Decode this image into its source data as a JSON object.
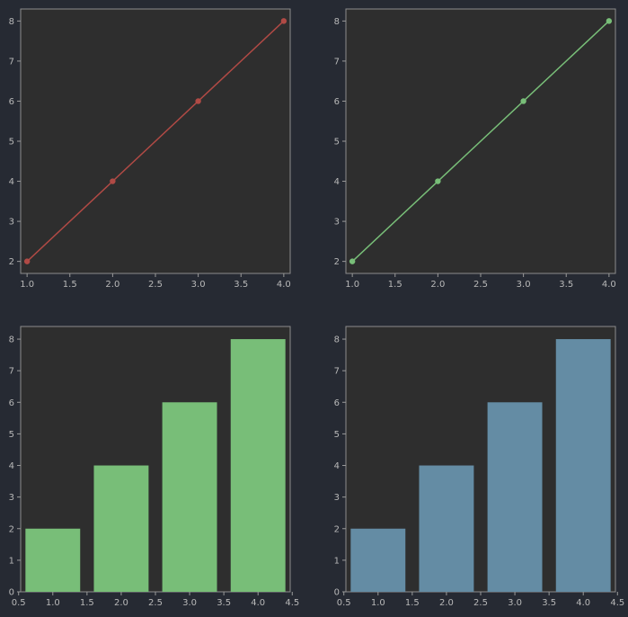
{
  "chart_data": [
    {
      "type": "line",
      "x": [
        1.0,
        2.0,
        3.0,
        4.0
      ],
      "y": [
        2,
        4,
        6,
        8
      ],
      "color": "#b04a45",
      "markers": true,
      "xlim": [
        0.925,
        4.075
      ],
      "ylim": [
        1.7,
        8.3
      ],
      "xticks": [
        1.0,
        1.5,
        2.0,
        2.5,
        3.0,
        3.5,
        4.0
      ],
      "xtick_labels": [
        "1.0",
        "1.5",
        "2.0",
        "2.5",
        "3.0",
        "3.5",
        "4.0"
      ],
      "yticks": [
        2,
        3,
        4,
        5,
        6,
        7,
        8
      ],
      "ytick_labels": [
        "2",
        "3",
        "4",
        "5",
        "6",
        "7",
        "8"
      ],
      "title": "",
      "xlabel": "",
      "ylabel": "",
      "grid": false
    },
    {
      "type": "line",
      "x": [
        1.0,
        2.0,
        3.0,
        4.0
      ],
      "y": [
        2,
        4,
        6,
        8
      ],
      "color": "#78be78",
      "markers": true,
      "xlim": [
        0.925,
        4.075
      ],
      "ylim": [
        1.7,
        8.3
      ],
      "xticks": [
        1.0,
        1.5,
        2.0,
        2.5,
        3.0,
        3.5,
        4.0
      ],
      "xtick_labels": [
        "1.0",
        "1.5",
        "2.0",
        "2.5",
        "3.0",
        "3.5",
        "4.0"
      ],
      "yticks": [
        2,
        3,
        4,
        5,
        6,
        7,
        8
      ],
      "ytick_labels": [
        "2",
        "3",
        "4",
        "5",
        "6",
        "7",
        "8"
      ],
      "title": "",
      "xlabel": "",
      "ylabel": "",
      "grid": false
    },
    {
      "type": "bar",
      "x": [
        1.0,
        2.0,
        3.0,
        4.0
      ],
      "values": [
        2,
        4,
        6,
        8
      ],
      "bar_width": 0.8,
      "color": "#78be78",
      "xlim": [
        0.53,
        4.47
      ],
      "ylim": [
        0,
        8.4
      ],
      "xticks": [
        0.5,
        1.0,
        1.5,
        2.0,
        2.5,
        3.0,
        3.5,
        4.0,
        4.5
      ],
      "xtick_labels": [
        "0.5",
        "1.0",
        "1.5",
        "2.0",
        "2.5",
        "3.0",
        "3.5",
        "4.0",
        "4.5"
      ],
      "yticks": [
        0,
        1,
        2,
        3,
        4,
        5,
        6,
        7,
        8
      ],
      "ytick_labels": [
        "0",
        "1",
        "2",
        "3",
        "4",
        "5",
        "6",
        "7",
        "8"
      ],
      "title": "",
      "xlabel": "",
      "ylabel": "",
      "grid": false
    },
    {
      "type": "bar",
      "x": [
        1.0,
        2.0,
        3.0,
        4.0
      ],
      "values": [
        2,
        4,
        6,
        8
      ],
      "bar_width": 0.8,
      "color": "#648ca4",
      "xlim": [
        0.53,
        4.47
      ],
      "ylim": [
        0,
        8.4
      ],
      "xticks": [
        0.5,
        1.0,
        1.5,
        2.0,
        2.5,
        3.0,
        3.5,
        4.0,
        4.5
      ],
      "xtick_labels": [
        "0.5",
        "1.0",
        "1.5",
        "2.0",
        "2.5",
        "3.0",
        "3.5",
        "4.0",
        "4.5"
      ],
      "yticks": [
        0,
        1,
        2,
        3,
        4,
        5,
        6,
        7,
        8
      ],
      "ytick_labels": [
        "0",
        "1",
        "2",
        "3",
        "4",
        "5",
        "6",
        "7",
        "8"
      ],
      "title": "",
      "xlabel": "",
      "ylabel": "",
      "grid": false
    }
  ]
}
